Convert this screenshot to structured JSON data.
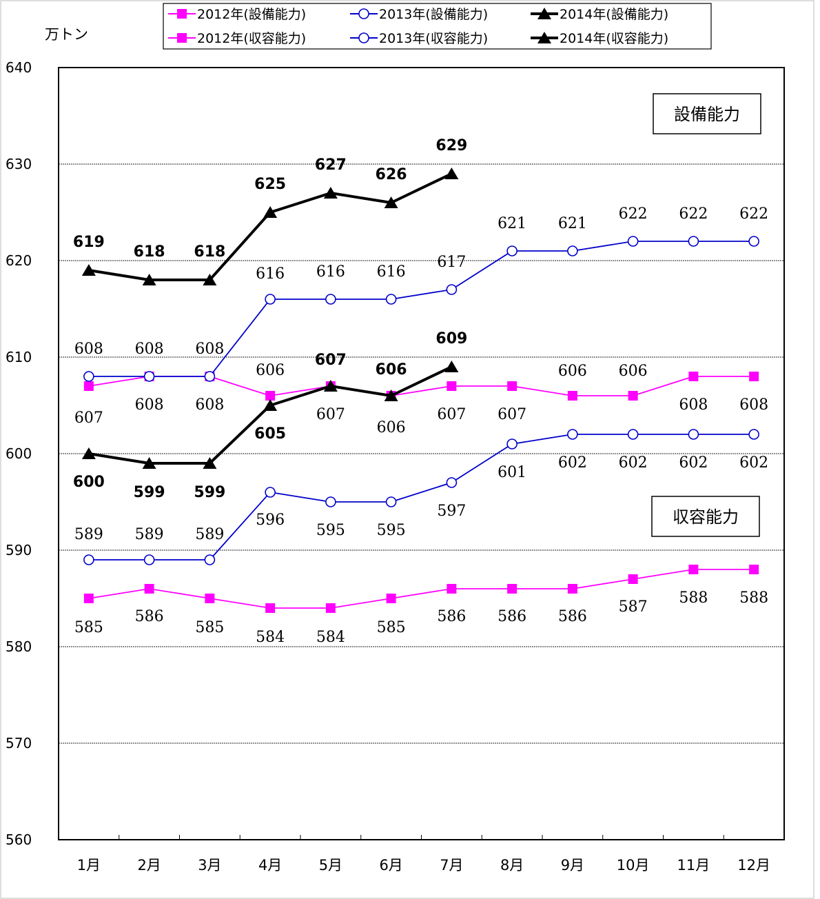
{
  "chart_data": {
    "type": "line",
    "unit_label": "万トン",
    "categories": [
      "1月",
      "2月",
      "3月",
      "4月",
      "5月",
      "6月",
      "7月",
      "8月",
      "9月",
      "10月",
      "11月",
      "12月"
    ],
    "ylim": [
      560,
      640
    ],
    "yticks": [
      560,
      570,
      580,
      590,
      600,
      610,
      620,
      630,
      640
    ],
    "grid": true,
    "legend_position": "top",
    "series": [
      {
        "name": "2012年(設備能力)",
        "group": "equipment",
        "color": "#FF00FF",
        "marker": "square",
        "values": [
          607,
          608,
          608,
          606,
          607,
          606,
          607,
          607,
          606,
          606,
          608,
          608
        ]
      },
      {
        "name": "2013年(設備能力)",
        "group": "equipment",
        "color": "#0000CC",
        "marker": "circle",
        "values": [
          608,
          608,
          608,
          616,
          616,
          616,
          617,
          621,
          621,
          622,
          622,
          622
        ]
      },
      {
        "name": "2014年(設備能力)",
        "group": "equipment",
        "color": "#000000",
        "marker": "triangle",
        "values": [
          619,
          618,
          618,
          625,
          627,
          626,
          629,
          null,
          null,
          null,
          null,
          null
        ]
      },
      {
        "name": "2012年(収容能力)",
        "group": "capacity",
        "color": "#FF00FF",
        "marker": "square",
        "values": [
          585,
          586,
          585,
          584,
          584,
          585,
          586,
          586,
          586,
          587,
          588,
          588
        ]
      },
      {
        "name": "2013年(収容能力)",
        "group": "capacity",
        "color": "#0000CC",
        "marker": "circle",
        "values": [
          589,
          589,
          589,
          596,
          595,
          595,
          597,
          601,
          602,
          602,
          602,
          602
        ]
      },
      {
        "name": "2014年(収容能力)",
        "group": "capacity",
        "color": "#000000",
        "marker": "triangle",
        "values": [
          600,
          599,
          599,
          605,
          607,
          606,
          609,
          null,
          null,
          null,
          null,
          null
        ]
      }
    ],
    "annotations": [
      {
        "text": "設備能力"
      },
      {
        "text": "収容能力"
      }
    ]
  }
}
